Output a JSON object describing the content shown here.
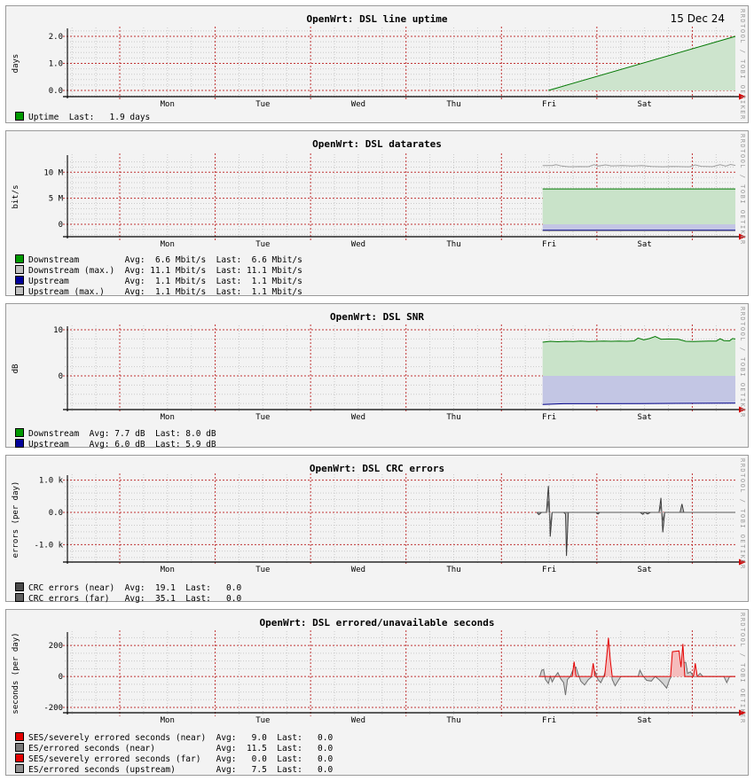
{
  "header": {
    "date": "15 Dec 24"
  },
  "watermark": "RRDTOOL / TOBI OETIKER",
  "x_axis": {
    "day_labels": [
      "Mon",
      "Tue",
      "Wed",
      "Thu",
      "Fri",
      "Sat"
    ]
  },
  "chart_data": [
    {
      "type": "area",
      "title": "OpenWrt: DSL line uptime",
      "ylabel": "days",
      "ylim": [
        -0.23,
        2.23
      ],
      "y_ticks": [
        {
          "v": 0,
          "label": "0.0"
        },
        {
          "v": 1,
          "label": "1.0"
        },
        {
          "v": 2,
          "label": "2.0"
        }
      ],
      "y_major": [
        0,
        1,
        2
      ],
      "y_minor_step": 0.2,
      "series": [
        {
          "name": "Uptime",
          "kind": "area",
          "color": "#007700",
          "fill": "#cde4cd",
          "points": [
            [
              5.04,
              0.0
            ],
            [
              7.0,
              2.0
            ]
          ]
        }
      ],
      "legend": [
        {
          "color": "#009900",
          "text": "Uptime  Last:   1.9 days"
        }
      ]
    },
    {
      "type": "area",
      "title": "OpenWrt: DSL datarates",
      "ylabel": "bit/s",
      "ylim": [
        -2.39,
        12.95
      ],
      "y_ticks": [
        {
          "v": 0,
          "label": "0"
        },
        {
          "v": 5,
          "label": "5 M"
        },
        {
          "v": 10,
          "label": "10 M"
        }
      ],
      "y_major": [
        0,
        5,
        10
      ],
      "y_minor_step": 1,
      "series": [
        {
          "name": "Downstream",
          "kind": "area",
          "color": "#007700",
          "fill": "#c9e3c9",
          "points": [
            [
              4.98,
              6.8
            ],
            [
              7,
              6.8
            ]
          ]
        },
        {
          "name": "Upstream",
          "kind": "area",
          "color": "#000088",
          "fill": "#c3c6e4",
          "points": [
            [
              4.98,
              -1.15
            ],
            [
              7,
              -1.15
            ]
          ]
        },
        {
          "name": "Upstream (max.)",
          "kind": "line",
          "color": "#9e9e9e",
          "points": [
            [
              4.98,
              -1.3
            ],
            [
              7,
              -1.3
            ]
          ]
        },
        {
          "name": "Downstream (max.)",
          "kind": "line",
          "color": "#9e9e9e",
          "points": [
            [
              4.98,
              11.3
            ],
            [
              5.08,
              11.3
            ],
            [
              5.12,
              11.45
            ],
            [
              5.18,
              11.2
            ],
            [
              5.26,
              11.05
            ],
            [
              5.36,
              11.1
            ],
            [
              5.46,
              11.08
            ],
            [
              5.52,
              11.45
            ],
            [
              5.56,
              11.2
            ],
            [
              5.64,
              11.42
            ],
            [
              5.7,
              11.22
            ],
            [
              5.82,
              11.3
            ],
            [
              5.92,
              11.2
            ],
            [
              6.02,
              11.28
            ],
            [
              6.12,
              11.12
            ],
            [
              6.24,
              11.06
            ],
            [
              6.34,
              11.12
            ],
            [
              6.44,
              11.08
            ],
            [
              6.52,
              11.06
            ],
            [
              6.58,
              11.42
            ],
            [
              6.64,
              11.15
            ],
            [
              6.76,
              11.08
            ],
            [
              6.84,
              11.45
            ],
            [
              6.9,
              11.2
            ],
            [
              6.95,
              11.5
            ],
            [
              7,
              11.32
            ]
          ]
        }
      ],
      "legend": [
        {
          "color": "#009900",
          "text": "Downstream         Avg:  6.6 Mbit/s  Last:  6.6 Mbit/s"
        },
        {
          "color": "#c0c0c0",
          "text": "Downstream (max.)  Avg: 11.1 Mbit/s  Last: 11.1 Mbit/s"
        },
        {
          "color": "#000099",
          "text": "Upstream           Avg:  1.1 Mbit/s  Last:  1.1 Mbit/s"
        },
        {
          "color": "#c0c0c0",
          "text": "Upstream (max.)    Avg:  1.1 Mbit/s  Last:  1.1 Mbit/s"
        }
      ]
    },
    {
      "type": "area",
      "title": "OpenWrt: DSL SNR",
      "ylabel": "dB",
      "ylim": [
        -7.31,
        10.38
      ],
      "y_ticks": [
        {
          "v": 0,
          "label": "0"
        },
        {
          "v": 10,
          "label": "10"
        }
      ],
      "y_major": [
        0,
        10
      ],
      "y_minor_step": 2,
      "series": [
        {
          "name": "Downstream",
          "kind": "area",
          "color": "#007700",
          "fill": "#c9e3c9",
          "points": [
            [
              4.98,
              7.3
            ],
            [
              5.06,
              7.5
            ],
            [
              5.14,
              7.4
            ],
            [
              5.22,
              7.5
            ],
            [
              5.3,
              7.45
            ],
            [
              5.38,
              7.55
            ],
            [
              5.46,
              7.45
            ],
            [
              5.54,
              7.5
            ],
            [
              5.62,
              7.55
            ],
            [
              5.7,
              7.5
            ],
            [
              5.78,
              7.55
            ],
            [
              5.86,
              7.5
            ],
            [
              5.94,
              7.6
            ],
            [
              5.98,
              8.2
            ],
            [
              6.04,
              7.8
            ],
            [
              6.1,
              8.1
            ],
            [
              6.16,
              8.55
            ],
            [
              6.22,
              7.95
            ],
            [
              6.3,
              8.0
            ],
            [
              6.4,
              7.95
            ],
            [
              6.48,
              7.5
            ],
            [
              6.56,
              7.45
            ],
            [
              6.64,
              7.5
            ],
            [
              6.72,
              7.55
            ],
            [
              6.8,
              7.55
            ],
            [
              6.84,
              8.05
            ],
            [
              6.88,
              7.65
            ],
            [
              6.94,
              7.6
            ],
            [
              6.97,
              8.1
            ],
            [
              7,
              8.0
            ]
          ]
        },
        {
          "name": "Upstream",
          "kind": "area",
          "color": "#000088",
          "fill": "#c3c6e4",
          "points": [
            [
              4.98,
              -6.2
            ],
            [
              5.2,
              -6.05
            ],
            [
              6.0,
              -6.0
            ],
            [
              7,
              -5.9
            ]
          ]
        }
      ],
      "legend": [
        {
          "color": "#009900",
          "text": "Downstream  Avg: 7.7 dB  Last: 8.0 dB"
        },
        {
          "color": "#000099",
          "text": "Upstream    Avg: 6.0 dB  Last: 5.9 dB"
        }
      ]
    },
    {
      "type": "area",
      "title": "OpenWrt: DSL CRC errors",
      "ylabel": "errors (per day)",
      "ylim": [
        -1.54,
        1.1
      ],
      "y_ticks": [
        {
          "v": -1,
          "label": "-1.0 k"
        },
        {
          "v": 0,
          "label": "0.0"
        },
        {
          "v": 1,
          "label": "1.0 k"
        }
      ],
      "y_major": [
        -1,
        0,
        1
      ],
      "y_minor_step": 0.2,
      "series": [
        {
          "name": "CRC errors (far)",
          "kind": "area",
          "color": "#3d3d3d",
          "fill": "#bdbdbd",
          "points": [
            [
              4.92,
              0
            ],
            [
              4.94,
              -0.07
            ],
            [
              4.97,
              0
            ],
            [
              5.02,
              0
            ],
            [
              5.04,
              0.82
            ],
            [
              5.05,
              0.3
            ],
            [
              5.06,
              -0.75
            ],
            [
              5.08,
              0
            ],
            [
              5.2,
              0
            ],
            [
              5.22,
              -0.05
            ],
            [
              5.23,
              -1.35
            ],
            [
              5.25,
              0
            ],
            [
              5.54,
              0
            ],
            [
              5.56,
              -0.05
            ],
            [
              5.58,
              0
            ],
            [
              6.0,
              0
            ],
            [
              6.03,
              -0.06
            ],
            [
              6.05,
              0
            ],
            [
              6.08,
              -0.05
            ],
            [
              6.11,
              0
            ],
            [
              6.2,
              0
            ],
            [
              6.22,
              0.45
            ],
            [
              6.24,
              -0.62
            ],
            [
              6.26,
              0
            ],
            [
              6.42,
              0
            ],
            [
              6.44,
              0.26
            ],
            [
              6.46,
              0
            ],
            [
              7,
              0
            ]
          ]
        },
        {
          "name": "CRC errors (near)",
          "kind": "area",
          "color": "#5a5a5a",
          "fill": "#d0d0d0",
          "points": [
            [
              4.92,
              0
            ],
            [
              5.02,
              0
            ],
            [
              5.04,
              0.35
            ],
            [
              5.06,
              -0.4
            ],
            [
              5.08,
              0
            ],
            [
              6.2,
              0
            ],
            [
              6.22,
              0.2
            ],
            [
              6.24,
              -0.25
            ],
            [
              6.26,
              0
            ],
            [
              7,
              0
            ]
          ]
        }
      ],
      "legend": [
        {
          "color": "#4a4a4a",
          "text": "CRC errors (near)  Avg:  19.1  Last:   0.0"
        },
        {
          "color": "#5f5f5f",
          "text": "CRC errors (far)   Avg:  35.1  Last:   0.0"
        }
      ]
    },
    {
      "type": "area",
      "title": "OpenWrt: DSL errored/unavailable seconds",
      "ylabel": "seconds (per day)",
      "ylim": [
        -234,
        275
      ],
      "y_ticks": [
        {
          "v": -200,
          "label": "-200"
        },
        {
          "v": 0,
          "label": "0"
        },
        {
          "v": 200,
          "label": "200"
        }
      ],
      "y_major": [
        -200,
        0,
        200
      ],
      "y_minor_step": 50,
      "series": [
        {
          "name": "ES/errored seconds",
          "kind": "area",
          "color": "#6e6e6e",
          "fill": "#d4d4d4",
          "points": [
            [
              4.95,
              0
            ],
            [
              4.97,
              40
            ],
            [
              4.99,
              45
            ],
            [
              5.01,
              -20
            ],
            [
              5.04,
              -45
            ],
            [
              5.06,
              0
            ],
            [
              5.08,
              -35
            ],
            [
              5.11,
              0
            ],
            [
              5.14,
              25
            ],
            [
              5.17,
              -15
            ],
            [
              5.2,
              -40
            ],
            [
              5.22,
              -120
            ],
            [
              5.24,
              -20
            ],
            [
              5.27,
              0
            ],
            [
              5.3,
              45
            ],
            [
              5.33,
              60
            ],
            [
              5.35,
              20
            ],
            [
              5.38,
              -30
            ],
            [
              5.42,
              -55
            ],
            [
              5.46,
              -20
            ],
            [
              5.5,
              0
            ],
            [
              5.53,
              30
            ],
            [
              5.56,
              -20
            ],
            [
              5.59,
              -40
            ],
            [
              5.62,
              0
            ],
            [
              5.65,
              60
            ],
            [
              5.67,
              130
            ],
            [
              5.69,
              60
            ],
            [
              5.71,
              -20
            ],
            [
              5.74,
              -60
            ],
            [
              5.77,
              -30
            ],
            [
              5.8,
              0
            ],
            [
              5.98,
              0
            ],
            [
              6.0,
              40
            ],
            [
              6.03,
              5
            ],
            [
              6.07,
              -25
            ],
            [
              6.12,
              -30
            ],
            [
              6.16,
              0
            ],
            [
              6.2,
              -20
            ],
            [
              6.24,
              -45
            ],
            [
              6.28,
              -75
            ],
            [
              6.31,
              -20
            ],
            [
              6.33,
              0
            ],
            [
              6.35,
              30
            ],
            [
              6.38,
              55
            ],
            [
              6.42,
              90
            ],
            [
              6.48,
              90
            ],
            [
              6.5,
              20
            ],
            [
              6.53,
              30
            ],
            [
              6.56,
              0
            ],
            [
              6.6,
              0
            ],
            [
              6.63,
              20
            ],
            [
              6.66,
              0
            ],
            [
              6.88,
              0
            ],
            [
              6.91,
              -40
            ],
            [
              6.94,
              0
            ],
            [
              7,
              0
            ]
          ]
        },
        {
          "name": "SES/severely errored seconds",
          "kind": "area",
          "color": "#e30000",
          "fill": "#f5bcbc",
          "points": [
            [
              4.95,
              0
            ],
            [
              5.29,
              0
            ],
            [
              5.31,
              95
            ],
            [
              5.33,
              0
            ],
            [
              5.49,
              0
            ],
            [
              5.51,
              85
            ],
            [
              5.53,
              0
            ],
            [
              5.63,
              0
            ],
            [
              5.65,
              120
            ],
            [
              5.67,
              250
            ],
            [
              5.69,
              100
            ],
            [
              5.71,
              0
            ],
            [
              6.32,
              0
            ],
            [
              6.34,
              160
            ],
            [
              6.41,
              165
            ],
            [
              6.43,
              60
            ],
            [
              6.45,
              210
            ],
            [
              6.47,
              0
            ],
            [
              6.56,
              0
            ],
            [
              6.58,
              85
            ],
            [
              6.6,
              0
            ],
            [
              7,
              0
            ]
          ]
        }
      ],
      "legend": [
        {
          "color": "#e30000",
          "text": "SES/severely errored seconds (near)  Avg:   9.0  Last:   0.0"
        },
        {
          "color": "#787878",
          "text": "ES/errored seconds (near)            Avg:  11.5  Last:   0.0"
        },
        {
          "color": "#e30000",
          "text": "SES/severely errored seconds (far)   Avg:   0.0  Last:   0.0"
        },
        {
          "color": "#8f8f8f",
          "text": "ES/errored seconds (upstream)        Avg:   7.5  Last:   0.0"
        }
      ]
    }
  ]
}
